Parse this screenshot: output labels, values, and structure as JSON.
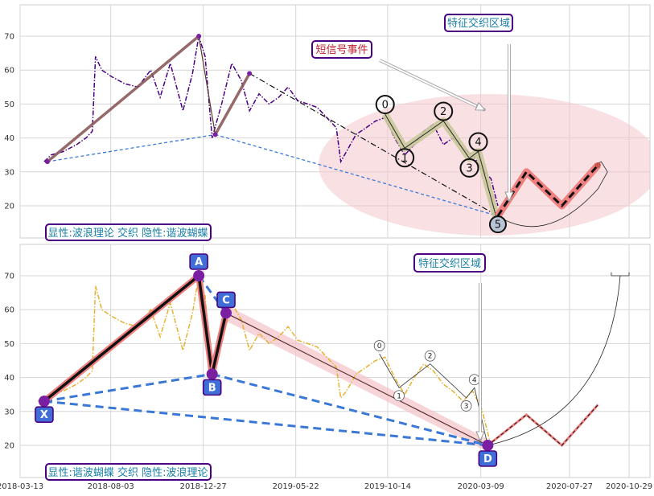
{
  "colors": {
    "purple_series": "#4b0082",
    "gold_series": "#e8b130",
    "wave_fill": "#c9c89a",
    "ellipse_fill": "#f2c6cc",
    "salmon": "#f08080",
    "blue_dash": "#3a78d8",
    "label_border": "#4b0082",
    "label_text_teal": "#1b7fa8",
    "label_text_red": "#c02030",
    "point_blue": "#3f6fd6",
    "marker_purple": "#7b1fa2"
  },
  "top_panel": {
    "legend_label": "显性:波浪理论 交织 隐性:谐波蝴蝶",
    "annotation_zone": "特征交织区域",
    "annotation_event": "短信号事件",
    "wave_labels": [
      "0",
      "1",
      "2",
      "3",
      "4",
      "5"
    ]
  },
  "bottom_panel": {
    "legend_label": "显性:谐波蝴蝶 交织 隐性:波浪理论",
    "annotation_zone": "特征交织区域",
    "point_labels": [
      "X",
      "A",
      "B",
      "C",
      "D"
    ],
    "wave_labels": [
      "0",
      "1",
      "2",
      "3",
      "4"
    ]
  },
  "chart_data": [
    {
      "type": "line",
      "panel": "top",
      "ylim": [
        10,
        80
      ],
      "yticks": [
        20,
        30,
        40,
        50,
        60,
        70
      ],
      "xlim": [
        "2018-03-13",
        "2020-10-29"
      ],
      "grid": true,
      "series": [
        {
          "style": "dash-dot",
          "x": [
            "2018-04-20",
            "2018-05-01",
            "2018-05-20",
            "2018-06-10",
            "2018-06-25",
            "2018-07-05",
            "2018-07-10",
            "2018-07-20",
            "2018-08-05",
            "2018-08-25",
            "2018-09-15",
            "2018-10-05",
            "2018-10-20",
            "2018-11-05",
            "2018-11-25",
            "2018-12-10",
            "2018-12-20",
            "2018-12-30",
            "2019-01-10",
            "2019-01-25",
            "2019-02-10",
            "2019-02-25",
            "2019-03-10",
            "2019-03-25",
            "2019-04-10",
            "2019-04-25",
            "2019-05-10",
            "2019-05-25",
            "2019-06-10",
            "2019-06-25",
            "2019-07-10",
            "2019-07-25",
            "2019-08-01",
            "2019-08-10",
            "2019-08-25",
            "2019-09-10",
            "2019-09-25",
            "2019-10-10",
            "2019-10-25",
            "2019-11-10",
            "2019-11-25",
            "2019-12-10",
            "2019-12-25",
            "2020-01-10",
            "2020-01-25",
            "2020-02-10",
            "2020-02-25",
            "2020-03-10",
            "2020-03-25",
            "2020-04-05"
          ],
          "values": [
            33,
            35,
            36,
            38,
            40,
            42,
            64,
            60,
            58,
            56,
            55,
            60,
            52,
            62,
            48,
            59,
            70,
            64,
            40,
            50,
            62,
            57,
            48,
            53,
            50,
            52,
            55,
            51,
            50,
            49,
            46,
            43,
            33,
            36,
            41,
            43,
            45,
            46,
            40,
            35,
            38,
            42,
            44,
            38,
            40,
            37,
            35,
            31,
            28,
            20
          ]
        }
      ],
      "overlay_lines": [
        {
          "name": "wave-up-1",
          "x": [
            "2018-04-25",
            "2018-12-20"
          ],
          "y": [
            33,
            70
          ]
        },
        {
          "name": "wave-down-1",
          "x": [
            "2018-12-20",
            "2019-01-15"
          ],
          "y": [
            70,
            41
          ]
        },
        {
          "name": "wave-up-2",
          "x": [
            "2019-01-15",
            "2019-03-10"
          ],
          "y": [
            41,
            59
          ]
        },
        {
          "name": "trend-dashdot",
          "x": [
            "2019-03-10",
            "2020-04-05"
          ],
          "y": [
            59,
            17
          ]
        },
        {
          "name": "blue-dash-low",
          "x": [
            "2018-04-25",
            "2019-01-15"
          ],
          "y": [
            33,
            41
          ]
        },
        {
          "name": "blue-dash-high",
          "x": [
            "2019-01-15",
            "2020-04-05"
          ],
          "y": [
            41,
            17
          ]
        }
      ],
      "elliott_wave": {
        "x": [
          "2019-10-10",
          "2019-11-10",
          "2020-01-10",
          "2020-02-20",
          "2020-03-05",
          "2020-04-05"
        ],
        "y": [
          47,
          37,
          45,
          34,
          36,
          15
        ]
      },
      "projection": {
        "x": [
          "2020-04-05",
          "2020-05-20",
          "2020-07-15",
          "2020-09-10"
        ],
        "y": [
          17,
          30,
          20,
          32
        ]
      }
    },
    {
      "type": "line",
      "panel": "bottom",
      "ylim": [
        10,
        80
      ],
      "yticks": [
        20,
        30,
        40,
        50,
        60,
        70
      ],
      "xlim": [
        "2018-03-13",
        "2020-10-29"
      ],
      "xticks": [
        "2018-03-13",
        "2018-08-03",
        "2018-12-27",
        "2019-05-22",
        "2019-10-14",
        "2020-03-09",
        "2020-07-27",
        "2020-10-29"
      ],
      "grid": true,
      "series": [
        {
          "style": "dash-dot",
          "x": [
            "2018-04-10",
            "2018-05-01",
            "2018-05-20",
            "2018-06-10",
            "2018-06-25",
            "2018-07-05",
            "2018-07-10",
            "2018-07-20",
            "2018-08-05",
            "2018-08-25",
            "2018-09-15",
            "2018-10-05",
            "2018-10-20",
            "2018-11-05",
            "2018-11-25",
            "2018-12-10",
            "2018-12-20",
            "2018-12-30",
            "2019-01-10",
            "2019-01-25",
            "2019-02-10",
            "2019-02-25",
            "2019-03-10",
            "2019-03-25",
            "2019-04-10",
            "2019-04-25",
            "2019-05-10",
            "2019-05-25",
            "2019-06-10",
            "2019-06-25",
            "2019-07-10",
            "2019-07-25",
            "2019-08-01",
            "2019-08-10",
            "2019-08-25",
            "2019-09-10",
            "2019-09-25",
            "2019-10-10",
            "2019-10-25",
            "2019-11-10",
            "2019-11-25",
            "2019-12-10",
            "2019-12-25",
            "2020-01-10",
            "2020-01-25",
            "2020-02-10",
            "2020-02-25",
            "2020-03-10",
            "2020-03-25"
          ],
          "values": [
            33,
            35,
            36,
            38,
            40,
            42,
            67,
            60,
            58,
            56,
            55,
            60,
            52,
            62,
            48,
            59,
            70,
            64,
            40,
            50,
            62,
            57,
            48,
            53,
            50,
            52,
            55,
            51,
            50,
            49,
            46,
            43,
            34,
            36,
            41,
            43,
            45,
            46,
            40,
            35,
            40,
            44,
            42,
            38,
            36,
            33,
            36,
            31,
            20
          ]
        }
      ],
      "harmonic_points": {
        "x": [
          "2018-04-20",
          "2018-12-20",
          "2019-01-10",
          "2019-02-01",
          "2020-03-20"
        ],
        "y": [
          33,
          70,
          41,
          59,
          20
        ]
      },
      "elliott_wave": {
        "x": [
          "2019-10-01",
          "2019-11-01",
          "2019-12-20",
          "2020-02-15",
          "2020-02-28",
          "2020-03-20"
        ],
        "y": [
          47,
          37,
          44,
          34,
          37,
          20
        ]
      },
      "projection": {
        "x": [
          "2020-03-20",
          "2020-05-20",
          "2020-07-15",
          "2020-09-10"
        ],
        "y": [
          20,
          29,
          20,
          32
        ]
      }
    }
  ]
}
